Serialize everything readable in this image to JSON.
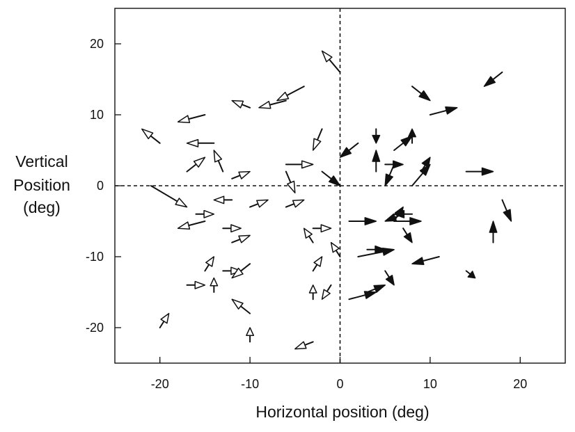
{
  "chart_data": {
    "type": "scatter",
    "subtype": "vector-field",
    "title": "",
    "xlabel": "Horizontal position (deg)",
    "ylabel": [
      "Vertical",
      "Position",
      "(deg)"
    ],
    "xlim": [
      -25,
      25
    ],
    "ylim": [
      -25,
      25
    ],
    "xticks": [
      -20,
      -10,
      0,
      10,
      20
    ],
    "yticks": [
      20,
      10,
      0,
      -10,
      -20
    ],
    "zero_lines": true,
    "grid": false,
    "legend": "none",
    "vectors_filled": [
      {
        "x0": 8,
        "y0": 14,
        "x1": 10,
        "y1": 12
      },
      {
        "x0": 18,
        "y0": 16,
        "x1": 16,
        "y1": 14
      },
      {
        "x0": 10,
        "y0": 10,
        "x1": 13,
        "y1": 11
      },
      {
        "x0": 4,
        "y0": 8,
        "x1": 4,
        "y1": 6
      },
      {
        "x0": 8,
        "y0": 6,
        "x1": 8,
        "y1": 8
      },
      {
        "x0": 6,
        "y0": 5,
        "x1": 8,
        "y1": 7
      },
      {
        "x0": 2,
        "y0": 6,
        "x1": 0,
        "y1": 4
      },
      {
        "x0": 4,
        "y0": 2,
        "x1": 4,
        "y1": 5
      },
      {
        "x0": 5,
        "y0": 3,
        "x1": 7,
        "y1": 3
      },
      {
        "x0": 9,
        "y0": 2,
        "x1": 10,
        "y1": 4
      },
      {
        "x0": 6,
        "y0": 3,
        "x1": 5,
        "y1": 0
      },
      {
        "x0": 14,
        "y0": 2,
        "x1": 17,
        "y1": 2
      },
      {
        "x0": 8,
        "y0": 0,
        "x1": 10,
        "y1": 3
      },
      {
        "x0": -2,
        "y0": 2,
        "x1": 0,
        "y1": 0
      },
      {
        "x0": 18,
        "y0": -2,
        "x1": 19,
        "y1": -5
      },
      {
        "x0": 6,
        "y0": -5,
        "x1": 7,
        "y1": -3
      },
      {
        "x0": 7,
        "y0": -4,
        "x1": 5,
        "y1": -5
      },
      {
        "x0": 8,
        "y0": -4,
        "x1": 6,
        "y1": -4
      },
      {
        "x0": 6,
        "y0": -5,
        "x1": 9,
        "y1": -5
      },
      {
        "x0": 1,
        "y0": -5,
        "x1": 4,
        "y1": -5
      },
      {
        "x0": 7,
        "y0": -6,
        "x1": 8,
        "y1": -8
      },
      {
        "x0": 17,
        "y0": -8,
        "x1": 17,
        "y1": -5
      },
      {
        "x0": 2,
        "y0": -10,
        "x1": 6,
        "y1": -9
      },
      {
        "x0": 11,
        "y0": -10,
        "x1": 8,
        "y1": -11
      },
      {
        "x0": 3,
        "y0": -9,
        "x1": 5,
        "y1": -9
      },
      {
        "x0": 5,
        "y0": -12,
        "x1": 6,
        "y1": -14
      },
      {
        "x0": 14,
        "y0": -12,
        "x1": 15,
        "y1": -13
      },
      {
        "x0": 1,
        "y0": -16,
        "x1": 4,
        "y1": -15
      },
      {
        "x0": 3,
        "y0": -15,
        "x1": 5,
        "y1": -14
      }
    ],
    "vectors_open": [
      {
        "x0": 0,
        "y0": 16,
        "x1": -2,
        "y1": 19
      },
      {
        "x0": -4,
        "y0": 14,
        "x1": -7,
        "y1": 12
      },
      {
        "x0": -6,
        "y0": 12,
        "x1": -9,
        "y1": 11
      },
      {
        "x0": -10,
        "y0": 11,
        "x1": -12,
        "y1": 12
      },
      {
        "x0": -15,
        "y0": 10,
        "x1": -18,
        "y1": 9
      },
      {
        "x0": -20,
        "y0": 6,
        "x1": -22,
        "y1": 8
      },
      {
        "x0": -14,
        "y0": 6,
        "x1": -17,
        "y1": 6
      },
      {
        "x0": -2,
        "y0": 8,
        "x1": -3,
        "y1": 5
      },
      {
        "x0": -17,
        "y0": 2,
        "x1": -15,
        "y1": 4
      },
      {
        "x0": -13,
        "y0": 2,
        "x1": -14,
        "y1": 5
      },
      {
        "x0": -12,
        "y0": 1,
        "x1": -10,
        "y1": 2
      },
      {
        "x0": -6,
        "y0": 3,
        "x1": -3,
        "y1": 3
      },
      {
        "x0": -6,
        "y0": 2,
        "x1": -5,
        "y1": -1
      },
      {
        "x0": -21,
        "y0": 0,
        "x1": -17,
        "y1": -3
      },
      {
        "x0": -12,
        "y0": -2,
        "x1": -14,
        "y1": -2
      },
      {
        "x0": -10,
        "y0": -3,
        "x1": -8,
        "y1": -2
      },
      {
        "x0": -6,
        "y0": -3,
        "x1": -4,
        "y1": -2
      },
      {
        "x0": -16,
        "y0": -4,
        "x1": -14,
        "y1": -4
      },
      {
        "x0": -15,
        "y0": -5,
        "x1": -18,
        "y1": -6
      },
      {
        "x0": -13,
        "y0": -6,
        "x1": -11,
        "y1": -6
      },
      {
        "x0": -12,
        "y0": -8,
        "x1": -10,
        "y1": -7
      },
      {
        "x0": -3,
        "y0": -6,
        "x1": -1,
        "y1": -6
      },
      {
        "x0": -3,
        "y0": -8,
        "x1": -4,
        "y1": -6
      },
      {
        "x0": -3,
        "y0": -12,
        "x1": -2,
        "y1": -10
      },
      {
        "x0": 0,
        "y0": -10,
        "x1": -1,
        "y1": -8
      },
      {
        "x0": -15,
        "y0": -12,
        "x1": -14,
        "y1": -10
      },
      {
        "x0": -17,
        "y0": -14,
        "x1": -15,
        "y1": -14
      },
      {
        "x0": -14,
        "y0": -15,
        "x1": -14,
        "y1": -13
      },
      {
        "x0": -13,
        "y0": -12,
        "x1": -11,
        "y1": -12
      },
      {
        "x0": -10,
        "y0": -11,
        "x1": -12,
        "y1": -13
      },
      {
        "x0": -10,
        "y0": -18,
        "x1": -12,
        "y1": -16
      },
      {
        "x0": -10,
        "y0": -22,
        "x1": -10,
        "y1": -20
      },
      {
        "x0": -20,
        "y0": -20,
        "x1": -19,
        "y1": -18
      },
      {
        "x0": -3,
        "y0": -16,
        "x1": -3,
        "y1": -14
      },
      {
        "x0": -1,
        "y0": -14,
        "x1": -2,
        "y1": -16
      },
      {
        "x0": -3,
        "y0": -22,
        "x1": -5,
        "y1": -23
      }
    ]
  }
}
